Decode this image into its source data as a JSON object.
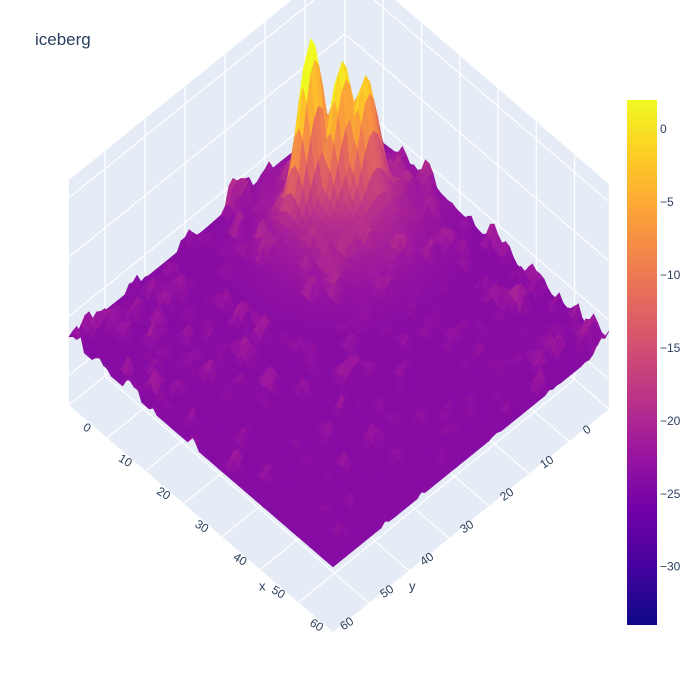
{
  "colors": {
    "pane": "#E5ECF6",
    "grid": "#ffffff",
    "text": "#2a3f5f",
    "colorscale": [
      "#0d0887",
      "#46039f",
      "#7201a8",
      "#9c179e",
      "#bd3786",
      "#d8576b",
      "#ed7953",
      "#fb9f3a",
      "#fdca26",
      "#f0f921"
    ]
  },
  "chart_data": {
    "type": "surface",
    "title": "iceberg",
    "x_axis": {
      "label": "x",
      "range": [
        0,
        69
      ],
      "ticks": [
        0,
        10,
        20,
        30,
        40,
        50,
        60
      ]
    },
    "y_axis": {
      "label": "y",
      "range": [
        0,
        69
      ],
      "ticks": [
        0,
        10,
        20,
        30,
        40,
        50,
        60
      ]
    },
    "z_axis": {
      "range": [
        -35,
        3
      ]
    },
    "colorbar": {
      "ticks": [
        0,
        -5,
        -10,
        -15,
        -20,
        -25,
        -30
      ],
      "range": [
        -34,
        2
      ]
    },
    "surface": {
      "grid_size": 70,
      "background_level": -24,
      "noise_amplitude": 4.5,
      "peaks": [
        {
          "x": 12,
          "y": 20,
          "height": 2
        },
        {
          "x": 16,
          "y": 16,
          "height": -3
        },
        {
          "x": 19,
          "y": 13,
          "height": -5
        }
      ]
    }
  }
}
